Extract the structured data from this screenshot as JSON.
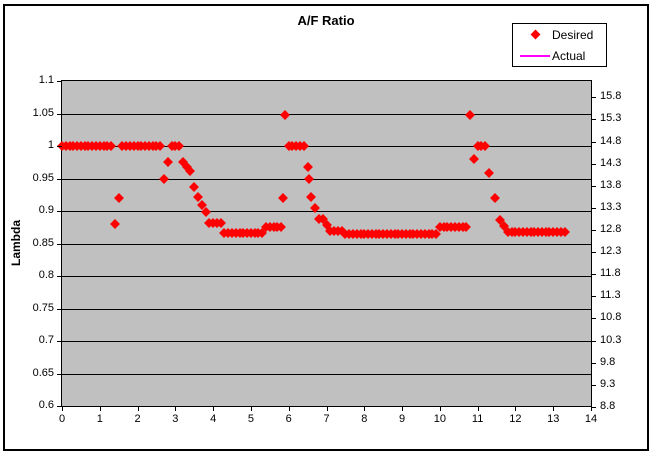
{
  "title": "A/F Ratio",
  "chart_data": {
    "type": "scatter",
    "title": "A/F Ratio",
    "xlabel": "",
    "ylabel": "Lambda",
    "xlim": [
      0,
      14
    ],
    "ylim": [
      0.6,
      1.1
    ],
    "y2lim": [
      8.82,
      16.17
    ],
    "x_ticks": [
      "0",
      "1",
      "2",
      "3",
      "4",
      "5",
      "6",
      "7",
      "8",
      "9",
      "10",
      "11",
      "12",
      "13",
      "14"
    ],
    "y_ticks": [
      "1.1",
      "1.05",
      "1",
      "0.95",
      "0.9",
      "0.85",
      "0.8",
      "0.75",
      "0.7",
      "0.65",
      "0.6"
    ],
    "y2_ticks": [
      "15.8",
      "15.3",
      "14.8",
      "14.3",
      "13.8",
      "13.3",
      "12.8",
      "12.3",
      "11.8",
      "11.3",
      "10.8",
      "10.3",
      "9.8",
      "9.3",
      "8.8"
    ],
    "grid": "horizontal",
    "gridline_color": "#000000",
    "plot_background": "#C0C0C0",
    "legend_position": "top-right-outside",
    "series": [
      {
        "name": "Desired",
        "marker": "diamond",
        "color": "#FF0000",
        "points": [
          [
            0,
            1
          ],
          [
            0.1,
            1
          ],
          [
            0.2,
            1
          ],
          [
            0.3,
            1
          ],
          [
            0.4,
            1
          ],
          [
            0.5,
            1
          ],
          [
            0.6,
            1
          ],
          [
            0.7,
            1
          ],
          [
            0.8,
            1
          ],
          [
            0.9,
            1
          ],
          [
            1,
            1
          ],
          [
            1.1,
            1
          ],
          [
            1.2,
            1
          ],
          [
            1.3,
            1
          ],
          [
            1.4,
            0.88
          ],
          [
            1.5,
            0.92
          ],
          [
            1.6,
            1
          ],
          [
            1.7,
            1
          ],
          [
            1.8,
            1
          ],
          [
            1.9,
            1
          ],
          [
            2,
            1
          ],
          [
            2.1,
            1
          ],
          [
            2.2,
            1
          ],
          [
            2.3,
            1
          ],
          [
            2.4,
            1
          ],
          [
            2.5,
            1
          ],
          [
            2.6,
            1
          ],
          [
            2.7,
            0.95
          ],
          [
            2.8,
            0.975
          ],
          [
            2.9,
            1
          ],
          [
            3,
            1
          ],
          [
            3.1,
            1
          ],
          [
            3.2,
            0.975
          ],
          [
            3.3,
            0.967
          ],
          [
            3.4,
            0.962
          ],
          [
            3.5,
            0.937
          ],
          [
            3.6,
            0.922
          ],
          [
            3.7,
            0.91
          ],
          [
            3.8,
            0.898
          ],
          [
            3.9,
            0.882
          ],
          [
            4,
            0.882
          ],
          [
            4.1,
            0.882
          ],
          [
            4.2,
            0.882
          ],
          [
            4.3,
            0.866
          ],
          [
            4.4,
            0.866
          ],
          [
            4.5,
            0.866
          ],
          [
            4.6,
            0.866
          ],
          [
            4.7,
            0.866
          ],
          [
            4.8,
            0.866
          ],
          [
            4.9,
            0.866
          ],
          [
            5,
            0.866
          ],
          [
            5.1,
            0.866
          ],
          [
            5.2,
            0.866
          ],
          [
            5.3,
            0.866
          ],
          [
            5.4,
            0.876
          ],
          [
            5.5,
            0.876
          ],
          [
            5.6,
            0.876
          ],
          [
            5.7,
            0.876
          ],
          [
            5.8,
            0.876
          ],
          [
            5.85,
            0.92
          ],
          [
            5.9,
            1.047
          ],
          [
            6,
            1
          ],
          [
            6.1,
            1
          ],
          [
            6.2,
            1
          ],
          [
            6.3,
            1
          ],
          [
            6.4,
            1
          ],
          [
            6.5,
            0.968
          ],
          [
            6.55,
            0.95
          ],
          [
            6.6,
            0.922
          ],
          [
            6.7,
            0.905
          ],
          [
            6.8,
            0.888
          ],
          [
            6.9,
            0.888
          ],
          [
            7,
            0.878
          ],
          [
            7.1,
            0.87
          ],
          [
            7.2,
            0.87
          ],
          [
            7.3,
            0.87
          ],
          [
            7.4,
            0.87
          ],
          [
            7.5,
            0.865
          ],
          [
            7.6,
            0.865
          ],
          [
            7.7,
            0.865
          ],
          [
            7.8,
            0.865
          ],
          [
            7.9,
            0.865
          ],
          [
            8,
            0.865
          ],
          [
            8.1,
            0.865
          ],
          [
            8.2,
            0.865
          ],
          [
            8.3,
            0.865
          ],
          [
            8.4,
            0.865
          ],
          [
            8.5,
            0.865
          ],
          [
            8.6,
            0.865
          ],
          [
            8.7,
            0.865
          ],
          [
            8.8,
            0.865
          ],
          [
            8.9,
            0.865
          ],
          [
            9,
            0.865
          ],
          [
            9.1,
            0.865
          ],
          [
            9.2,
            0.865
          ],
          [
            9.3,
            0.865
          ],
          [
            9.4,
            0.865
          ],
          [
            9.5,
            0.865
          ],
          [
            9.6,
            0.865
          ],
          [
            9.7,
            0.865
          ],
          [
            9.8,
            0.865
          ],
          [
            9.9,
            0.865
          ],
          [
            10,
            0.876
          ],
          [
            10.1,
            0.876
          ],
          [
            10.2,
            0.876
          ],
          [
            10.3,
            0.876
          ],
          [
            10.4,
            0.876
          ],
          [
            10.5,
            0.876
          ],
          [
            10.6,
            0.876
          ],
          [
            10.7,
            0.876
          ],
          [
            10.8,
            1.047
          ],
          [
            10.9,
            0.98
          ],
          [
            11,
            1
          ],
          [
            11.1,
            1
          ],
          [
            11.2,
            1
          ],
          [
            11.3,
            0.958
          ],
          [
            11.45,
            0.92
          ],
          [
            11.6,
            0.886
          ],
          [
            11.7,
            0.877
          ],
          [
            11.8,
            0.867
          ],
          [
            11.9,
            0.867
          ],
          [
            12,
            0.867
          ],
          [
            12.1,
            0.867
          ],
          [
            12.2,
            0.867
          ],
          [
            12.3,
            0.867
          ],
          [
            12.4,
            0.867
          ],
          [
            12.5,
            0.867
          ],
          [
            12.6,
            0.867
          ],
          [
            12.7,
            0.867
          ],
          [
            12.8,
            0.867
          ],
          [
            12.9,
            0.867
          ],
          [
            13,
            0.867
          ],
          [
            13.1,
            0.867
          ],
          [
            13.2,
            0.867
          ],
          [
            13.3,
            0.867
          ]
        ]
      },
      {
        "name": "Actual",
        "marker": "line",
        "color": "#FF00FF",
        "points": []
      }
    ]
  }
}
